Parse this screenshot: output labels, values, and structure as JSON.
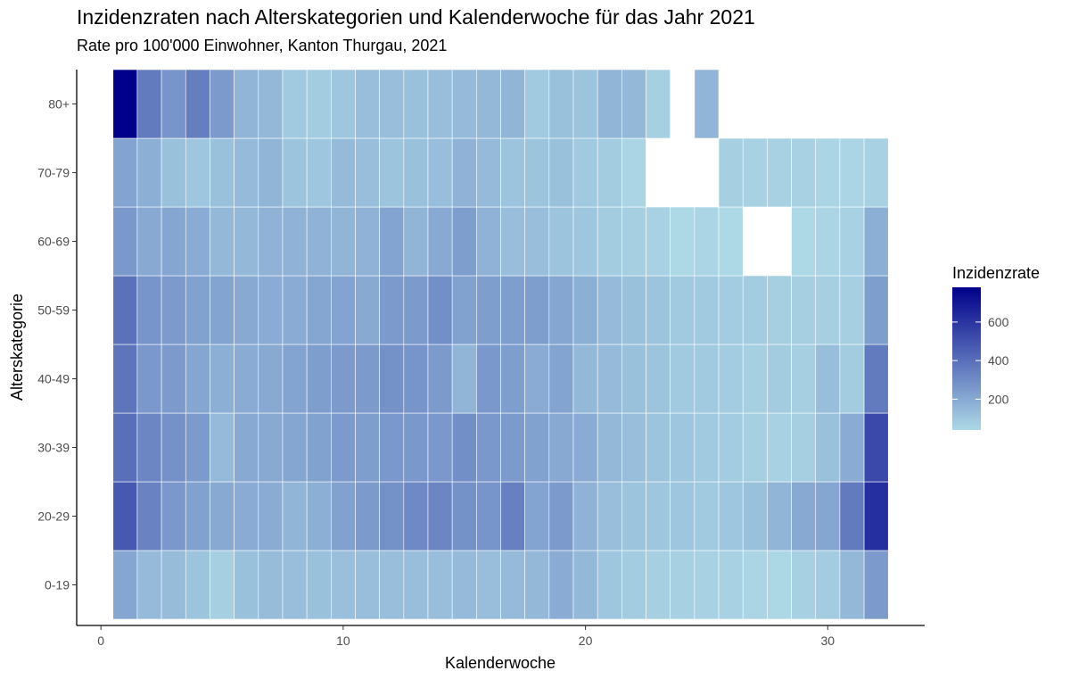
{
  "chart_data": {
    "type": "heatmap",
    "title": "Inzidenzraten nach Alterskategorien und Kalenderwoche für das Jahr 2021",
    "subtitle": "Rate pro 100'000 Einwohner, Kanton Thurgau, 2021",
    "xlabel": "Kalenderwoche",
    "ylabel": "Alterskategorie",
    "xlim": [
      -1,
      34
    ],
    "x_ticks": [
      0,
      10,
      20,
      30
    ],
    "x_tick_labels": [
      "0",
      "10",
      "20",
      "30"
    ],
    "weeks": [
      1,
      2,
      3,
      4,
      5,
      6,
      7,
      8,
      9,
      10,
      11,
      12,
      13,
      14,
      15,
      16,
      17,
      18,
      19,
      20,
      21,
      22,
      23,
      24,
      25,
      26,
      27,
      28,
      29,
      30,
      31,
      32
    ],
    "categories": [
      "0-19",
      "20-29",
      "30-39",
      "40-49",
      "50-59",
      "60-69",
      "70-79",
      "80+"
    ],
    "values": [
      [
        210,
        140,
        135,
        110,
        70,
        120,
        135,
        130,
        120,
        125,
        130,
        130,
        130,
        130,
        140,
        130,
        140,
        150,
        190,
        150,
        100,
        80,
        70,
        65,
        60,
        60,
        50,
        45,
        65,
        80,
        150,
        250
      ],
      [
        480,
        330,
        260,
        230,
        200,
        190,
        190,
        160,
        180,
        230,
        250,
        280,
        310,
        320,
        280,
        270,
        340,
        220,
        250,
        170,
        130,
        110,
        100,
        100,
        90,
        100,
        120,
        160,
        200,
        210,
        360,
        620
      ],
      [
        400,
        320,
        280,
        250,
        140,
        200,
        200,
        210,
        230,
        250,
        240,
        260,
        260,
        260,
        290,
        260,
        250,
        230,
        200,
        190,
        150,
        130,
        110,
        100,
        90,
        80,
        70,
        60,
        70,
        120,
        190,
        530
      ],
      [
        380,
        260,
        250,
        210,
        180,
        190,
        200,
        220,
        240,
        250,
        250,
        280,
        270,
        250,
        160,
        260,
        240,
        190,
        220,
        150,
        140,
        120,
        110,
        90,
        90,
        80,
        70,
        80,
        70,
        130,
        80,
        360
      ],
      [
        390,
        270,
        250,
        230,
        220,
        200,
        190,
        190,
        210,
        220,
        200,
        250,
        250,
        290,
        230,
        240,
        240,
        240,
        210,
        180,
        140,
        120,
        110,
        90,
        90,
        80,
        80,
        70,
        70,
        70,
        70,
        240
      ],
      [
        260,
        200,
        210,
        190,
        150,
        150,
        170,
        170,
        170,
        160,
        170,
        220,
        160,
        200,
        240,
        170,
        130,
        130,
        110,
        100,
        80,
        70,
        60,
        40,
        50,
        30,
        null,
        null,
        40,
        50,
        60,
        180
      ],
      [
        220,
        180,
        120,
        100,
        120,
        140,
        160,
        110,
        100,
        140,
        130,
        110,
        120,
        130,
        170,
        140,
        110,
        110,
        120,
        90,
        80,
        50,
        null,
        null,
        null,
        70,
        60,
        60,
        60,
        50,
        50,
        60
      ],
      [
        780,
        360,
        270,
        350,
        250,
        160,
        150,
        90,
        80,
        100,
        130,
        130,
        120,
        130,
        140,
        150,
        160,
        90,
        120,
        110,
        160,
        150,
        70,
        null,
        160,
        null,
        null,
        null,
        null,
        null,
        null,
        null
      ]
    ],
    "colorscale": {
      "low": "#add8e6",
      "high": "#00008b",
      "min": 40,
      "max": 780
    },
    "legend": {
      "title": "Inzidenzrate",
      "ticks": [
        200,
        400,
        600
      ],
      "tick_labels": [
        "200",
        "400",
        "600"
      ],
      "position": "right"
    }
  }
}
